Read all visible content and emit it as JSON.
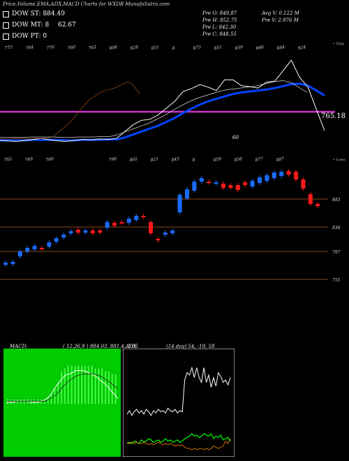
{
  "header": {
    "title": "Price,Volume,EMA,ADX,MACD Charts for WXDB MunafaSutra.com"
  },
  "legend": [
    {
      "label": "DOW ST: 884.49",
      "color": "#00ff00"
    },
    {
      "label": "DOW MT: 8",
      "color": "#0000ff"
    },
    {
      "label": "DOW PT: 0",
      "color": "#ff66ff"
    }
  ],
  "mt_extra": "62.67",
  "ohlc": {
    "open": "Pre O: 849.87",
    "high": "Pre H: 852.75",
    "low": "Pre L: 842.30",
    "close": "Pre C: 848.55",
    "avg_vol": "Avg V: 0.122 M",
    "pre_vol": "Pre V: 2.976 M"
  },
  "colors": {
    "up": "#1a6bff",
    "down": "#ff1a1a",
    "magenta": "#cc33cc",
    "hline": "#8a4a1a",
    "green": "#00cc00"
  },
  "chart_data": [
    {
      "type": "line",
      "title": "Price with EMA",
      "top_labels": [
        "773",
        "764",
        "770",
        "760",
        "763",
        "806",
        "828",
        "851",
        "8",
        "873",
        "851",
        "859",
        "866",
        "884",
        "924"
      ],
      "corner_label": "• Tops",
      "price_label": "765.18",
      "note": "60",
      "series": [
        {
          "values": [
            760,
            759,
            758,
            760,
            762,
            764,
            761,
            759,
            758,
            760,
            762,
            761,
            763,
            762,
            764,
            778,
            792,
            801,
            803,
            812,
            826,
            840,
            860,
            866,
            874,
            869,
            862,
            884,
            884,
            872,
            870,
            867,
            879,
            881,
            902,
            924,
            889,
            869,
            824,
            780
          ]
        },
        {
          "values": [
            760,
            760,
            760,
            760,
            761,
            761,
            761,
            761,
            760,
            760,
            761,
            761,
            761,
            762,
            762,
            766,
            772,
            778,
            784,
            790,
            798,
            806,
            816,
            825,
            833,
            840,
            845,
            850,
            855,
            858,
            860,
            862,
            864,
            867,
            871,
            875,
            876,
            872,
            862,
            852
          ]
        }
      ]
    },
    {
      "type": "candlestick",
      "title": "Price candles",
      "bottom_labels": [
        "762",
        "749",
        "760",
        "",
        "",
        "790",
        "802",
        "821",
        "845",
        "8",
        "859",
        "856",
        "877",
        "887"
      ],
      "corner_label": "• Lows",
      "right_labels": [
        "883",
        "838",
        "797",
        "751"
      ],
      "candles": [
        {
          "o": 756,
          "c": 759,
          "d": "up"
        },
        {
          "o": 757,
          "c": 760,
          "d": "up"
        },
        {
          "o": 775,
          "c": 768,
          "d": "up"
        },
        {
          "o": 780,
          "c": 775,
          "d": "up"
        },
        {
          "o": 778,
          "c": 783,
          "d": "up"
        },
        {
          "o": 780,
          "c": 779,
          "d": "down"
        },
        {
          "o": 788,
          "c": 782,
          "d": "up"
        },
        {
          "o": 794,
          "c": 789,
          "d": "up"
        },
        {
          "o": 799,
          "c": 795,
          "d": "up"
        },
        {
          "o": 804,
          "c": 801,
          "d": "up"
        },
        {
          "o": 802,
          "c": 806,
          "d": "down"
        },
        {
          "o": 805,
          "c": 802,
          "d": "up"
        },
        {
          "o": 805,
          "c": 801,
          "d": "down"
        },
        {
          "o": 805,
          "c": 802,
          "d": "down"
        },
        {
          "o": 817,
          "c": 809,
          "d": "up"
        },
        {
          "o": 812,
          "c": 816,
          "d": "down"
        },
        {
          "o": 816,
          "c": 817,
          "d": "down"
        },
        {
          "o": 822,
          "c": 816,
          "d": "up"
        },
        {
          "o": 826,
          "c": 820,
          "d": "up"
        },
        {
          "o": 824,
          "c": 826,
          "d": "down"
        },
        {
          "o": 817,
          "c": 801,
          "d": "down"
        },
        {
          "o": 793,
          "c": 791,
          "d": "down"
        },
        {
          "o": 802,
          "c": 799,
          "d": "up"
        },
        {
          "o": 805,
          "c": 801,
          "d": "up"
        },
        {
          "o": 856,
          "c": 831,
          "d": "up"
        },
        {
          "o": 864,
          "c": 851,
          "d": "up"
        },
        {
          "o": 875,
          "c": 862,
          "d": "up"
        },
        {
          "o": 880,
          "c": 875,
          "d": "up"
        },
        {
          "o": 875,
          "c": 874,
          "d": "down"
        },
        {
          "o": 872,
          "c": 874,
          "d": "up"
        },
        {
          "o": 872,
          "c": 866,
          "d": "down"
        },
        {
          "o": 866,
          "c": 870,
          "d": "down"
        },
        {
          "o": 863,
          "c": 870,
          "d": "down"
        },
        {
          "o": 870,
          "c": 874,
          "d": "down"
        },
        {
          "o": 876,
          "c": 868,
          "d": "up"
        },
        {
          "o": 881,
          "c": 873,
          "d": "up"
        },
        {
          "o": 884,
          "c": 876,
          "d": "up"
        },
        {
          "o": 888,
          "c": 880,
          "d": "up"
        },
        {
          "o": 889,
          "c": 883,
          "d": "up"
        },
        {
          "o": 885,
          "c": 890,
          "d": "down"
        },
        {
          "o": 878,
          "c": 889,
          "d": "down"
        },
        {
          "o": 865,
          "c": 878,
          "d": "down"
        },
        {
          "o": 843,
          "c": 857,
          "d": "down"
        },
        {
          "o": 840,
          "c": 843,
          "d": "down"
        }
      ]
    },
    {
      "type": "area",
      "title": "MACD",
      "label": "MACD:",
      "params": "( 12,26,9 ) 884.03, 881.4, 2.65",
      "histogram": [
        2,
        2,
        2,
        2,
        2,
        2,
        2,
        2,
        2,
        2,
        2,
        2,
        3,
        4,
        6,
        8,
        12,
        13,
        14,
        14,
        14,
        14,
        14,
        14,
        14,
        14,
        13,
        13,
        13,
        12,
        12,
        11,
        11
      ],
      "macd": [
        5,
        5,
        5,
        6,
        6,
        6,
        6,
        5,
        5,
        5,
        6,
        7,
        9,
        13,
        18,
        22,
        26,
        29,
        30,
        31,
        33,
        33,
        33,
        32,
        30,
        29,
        27,
        24,
        22,
        19,
        15,
        12,
        8
      ],
      "signal": [
        6,
        6,
        6,
        6,
        6,
        6,
        6,
        6,
        6,
        6,
        6,
        6,
        7,
        9,
        11,
        14,
        18,
        21,
        24,
        26,
        28,
        29,
        30,
        30,
        30,
        30,
        29,
        28,
        26,
        24,
        22,
        19,
        17
      ]
    },
    {
      "type": "line",
      "title": "ADX",
      "label": "ADX",
      "params": "(14 day) 54, -19, 58",
      "series": [
        {
          "values": [
            32,
            35,
            31,
            34,
            36,
            33,
            35,
            32,
            36,
            34,
            31,
            35,
            33,
            36,
            34,
            35,
            33,
            37,
            35,
            34,
            36,
            33,
            35,
            34,
            60,
            66,
            64,
            70,
            62,
            70,
            62,
            58,
            70,
            58,
            64,
            54,
            62,
            55,
            66,
            63,
            58,
            60,
            56,
            62
          ]
        },
        {
          "values": [
            8,
            9,
            8,
            10,
            9,
            8,
            11,
            9,
            10,
            12,
            11,
            9,
            10,
            11,
            9,
            10,
            12,
            10,
            11,
            9,
            10,
            11,
            9,
            10,
            12,
            13,
            14,
            16,
            14,
            15,
            13,
            14,
            16,
            15,
            14,
            16,
            12,
            14,
            13,
            15,
            11,
            12,
            13,
            10
          ]
        },
        {
          "values": [
            9,
            8,
            9,
            8,
            9,
            8,
            8,
            9,
            8,
            7,
            8,
            7,
            8,
            9,
            8,
            7,
            8,
            7,
            8,
            7,
            6,
            7,
            6,
            7,
            5,
            4,
            4,
            3,
            4,
            3,
            4,
            4,
            3,
            4,
            3,
            4,
            6,
            5,
            4,
            5,
            6,
            10,
            8,
            12
          ]
        }
      ]
    }
  ]
}
